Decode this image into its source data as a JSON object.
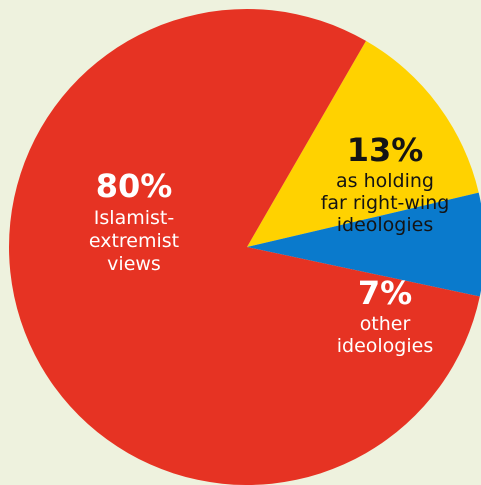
{
  "chart_data": {
    "type": "pie",
    "title": "",
    "start_angle_deg": -60,
    "direction": "clockwise",
    "slices": [
      {
        "value": 13,
        "percent_label": "13%",
        "description_lines": [
          "as holding",
          "far right-wing",
          "ideologies"
        ],
        "color": "#FFD200",
        "text_color": "#141414"
      },
      {
        "value": 7,
        "percent_label": "7%",
        "description_lines": [
          "other",
          "ideologies"
        ],
        "color": "#0A7ACC",
        "text_color": "#FFFFFF"
      },
      {
        "value": 80,
        "percent_label": "80%",
        "description_lines": [
          "Islamist-",
          "extremist",
          "views"
        ],
        "color": "#E63323",
        "text_color": "#FFFFFF"
      }
    ]
  },
  "colors": {
    "background": "#EEF2DE"
  }
}
